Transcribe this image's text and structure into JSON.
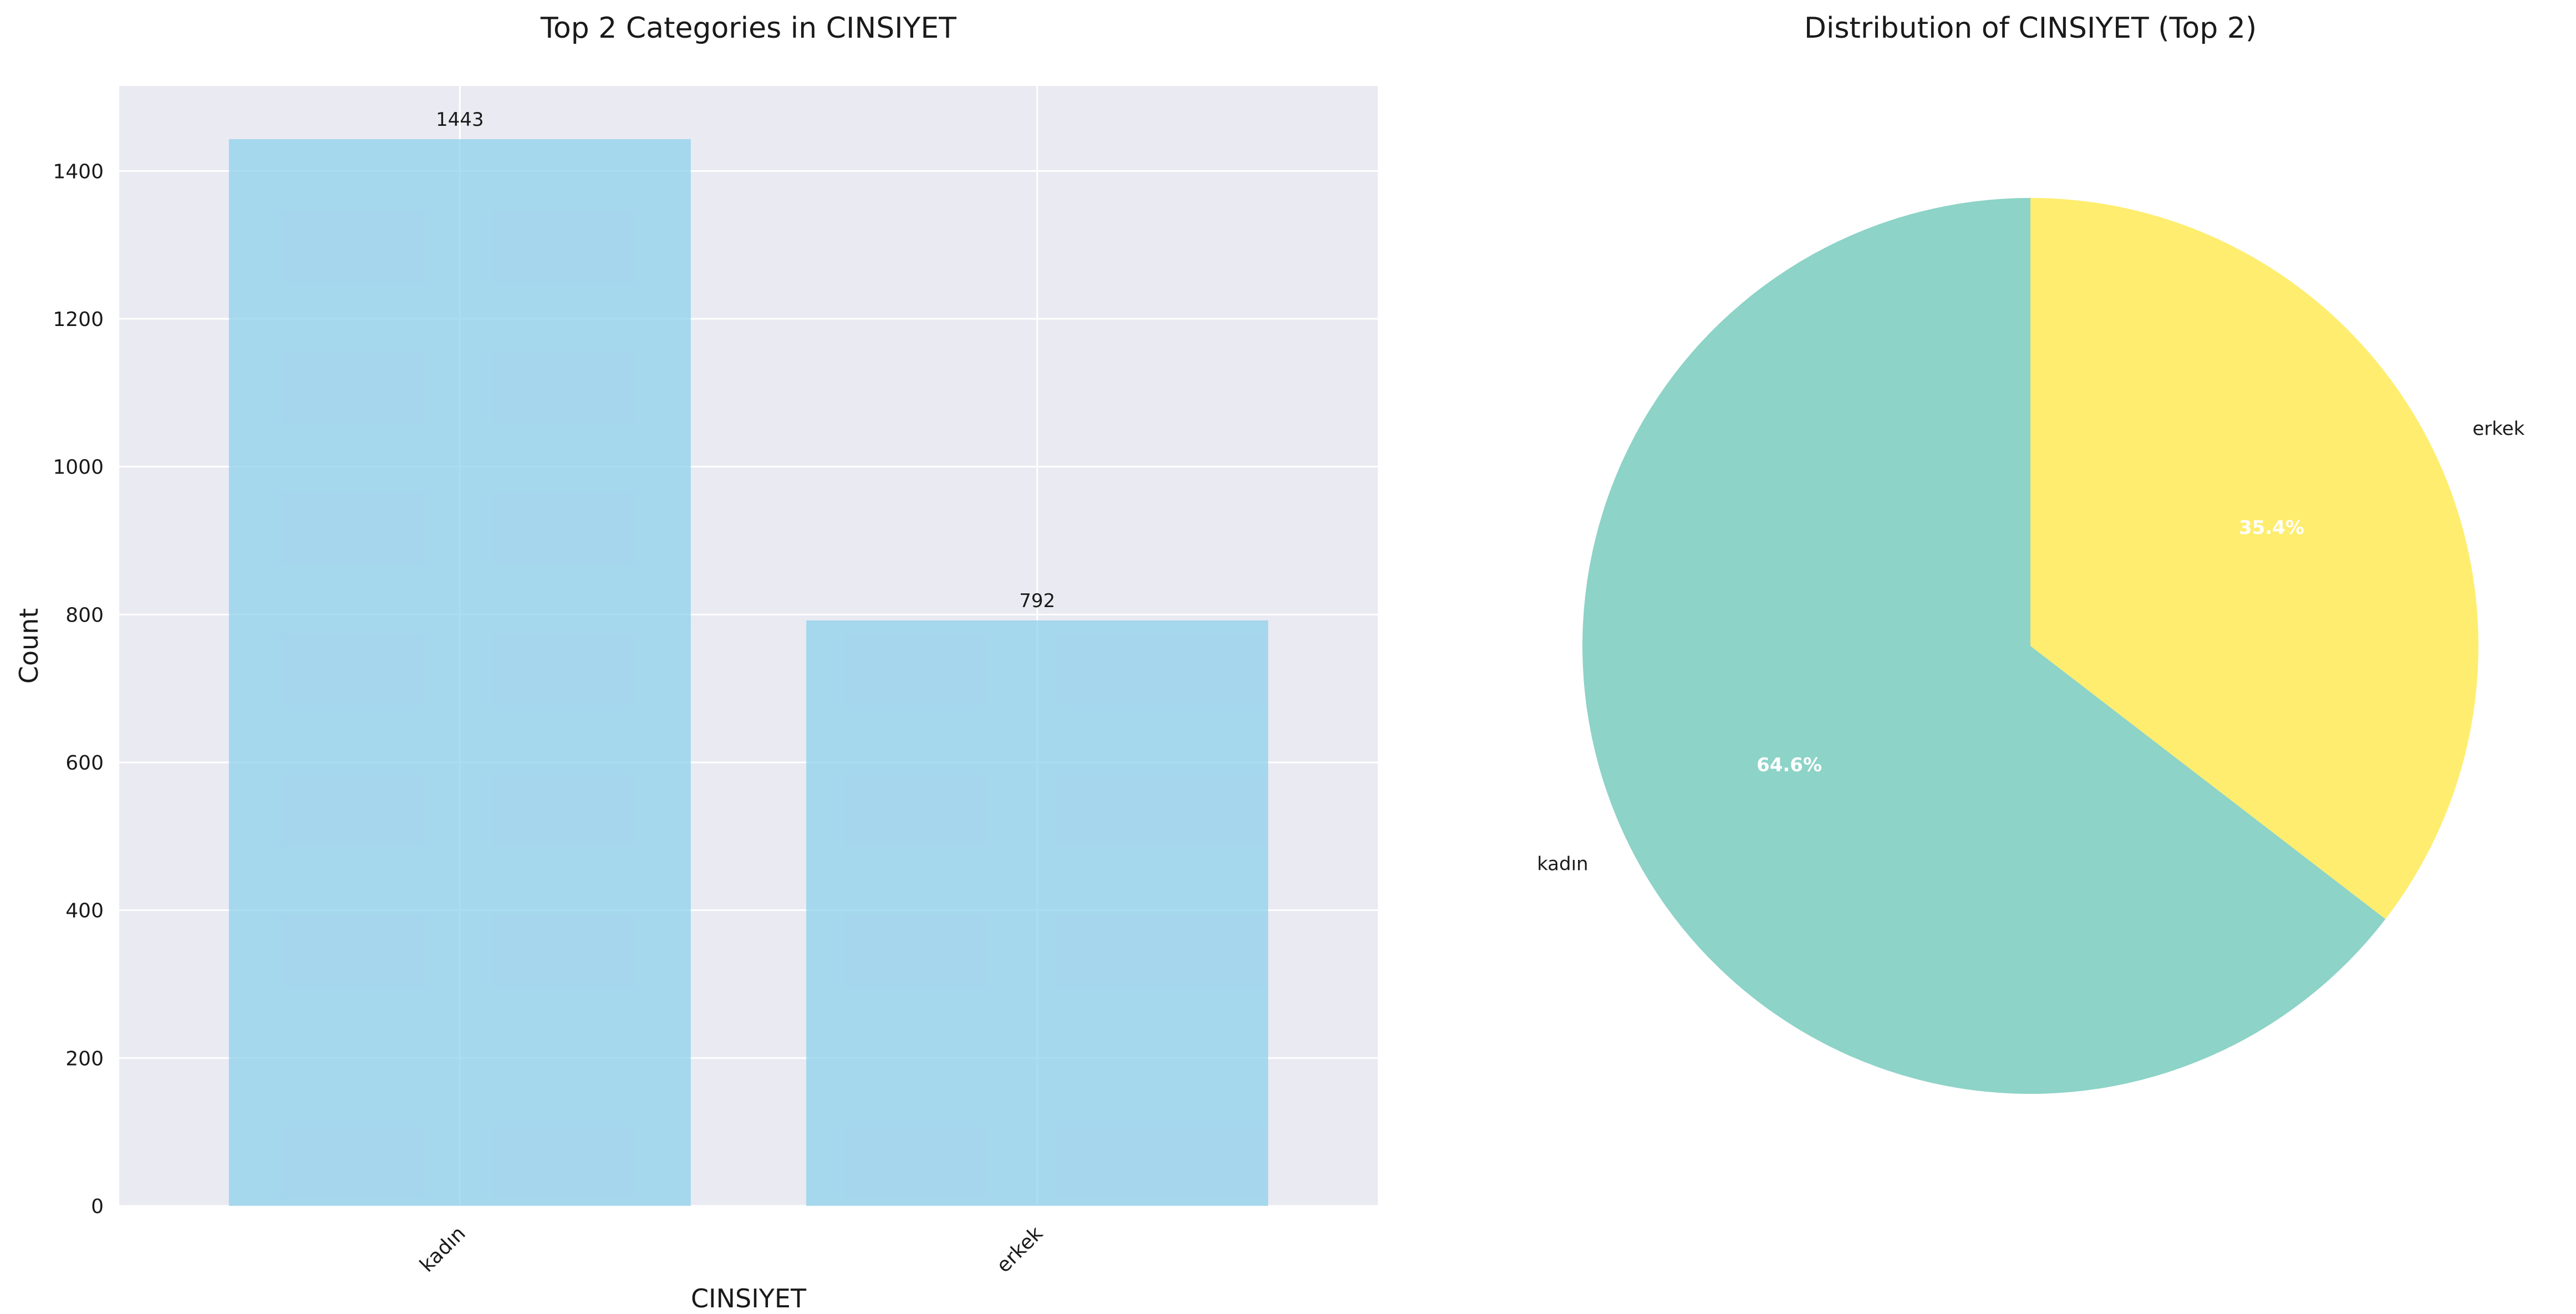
{
  "chart_data": [
    {
      "type": "bar",
      "title": "Top 2 Categories in CINSIYET",
      "xlabel": "CINSIYET",
      "ylabel": "Count",
      "categories": [
        "kadın",
        "erkek"
      ],
      "values": [
        1443,
        792
      ],
      "value_labels": [
        "1443",
        "792"
      ],
      "ylim": [
        0,
        1515
      ],
      "yticks": [
        0,
        200,
        400,
        600,
        800,
        1000,
        1200,
        1400
      ],
      "grid": true,
      "bar_color": "#87CEEB",
      "background_color": "#EAEAF2"
    },
    {
      "type": "pie",
      "title": "Distribution of CINSIYET (Top 2)",
      "labels": [
        "kadın",
        "erkek"
      ],
      "values": [
        1443,
        792
      ],
      "percent_labels": [
        "64.6%",
        "35.4%"
      ],
      "colors": [
        "#8DD3C7",
        "#FFED6F"
      ]
    }
  ]
}
